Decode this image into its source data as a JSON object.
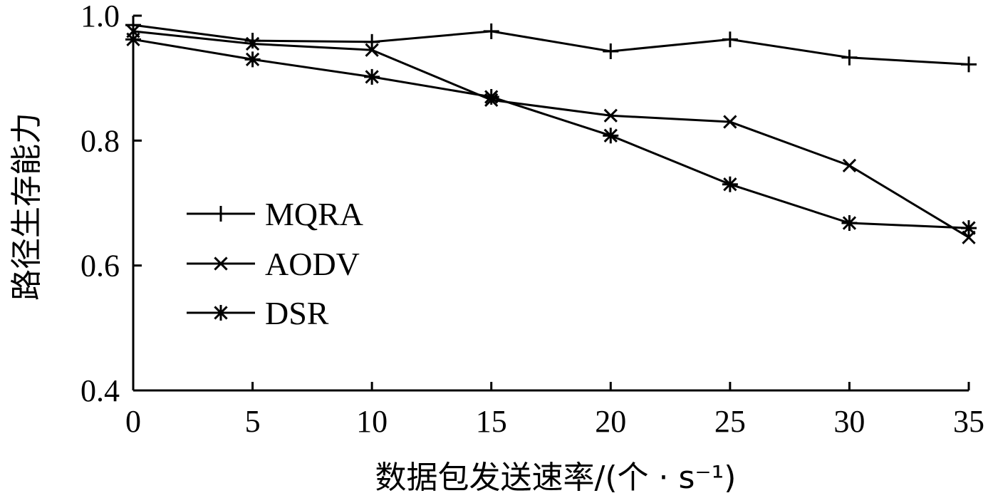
{
  "chart_data": {
    "type": "line",
    "title": "",
    "xlabel": "数据包发送速率/(个 · s⁻¹)",
    "ylabel": "路径生存能力",
    "xlim": [
      0,
      35
    ],
    "ylim": [
      0.4,
      1.0
    ],
    "x_ticks": [
      "0",
      "5",
      "10",
      "15",
      "20",
      "25",
      "30",
      "35"
    ],
    "y_ticks": [
      "0.4",
      "0.6",
      "0.8",
      "1.0"
    ],
    "x": [
      0,
      5,
      10,
      15,
      20,
      25,
      30,
      35
    ],
    "legend_position": "left",
    "grid": false,
    "series": [
      {
        "name": "MQRA",
        "marker": "plus",
        "values": [
          0.985,
          0.96,
          0.958,
          0.975,
          0.943,
          0.962,
          0.933,
          0.922
        ]
      },
      {
        "name": "AODV",
        "marker": "x",
        "values": [
          0.975,
          0.955,
          0.945,
          0.865,
          0.84,
          0.83,
          0.76,
          0.645
        ]
      },
      {
        "name": "DSR",
        "marker": "asterisk",
        "values": [
          0.962,
          0.93,
          0.902,
          0.87,
          0.808,
          0.73,
          0.668,
          0.66
        ]
      }
    ]
  }
}
